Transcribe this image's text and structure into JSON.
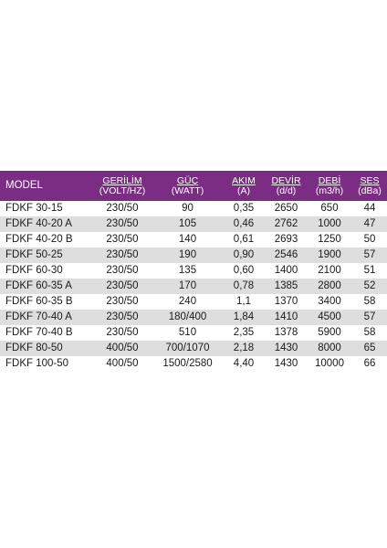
{
  "table": {
    "headers": [
      {
        "line1": "MODEL",
        "line2": ""
      },
      {
        "line1": "GERİLİM",
        "line2": "(VOLT/HZ)"
      },
      {
        "line1": "GÜÇ",
        "line2": "(WATT)"
      },
      {
        "line1": "AKIM",
        "line2": "(A)"
      },
      {
        "line1": "DEVİR",
        "line2": "(d/d)"
      },
      {
        "line1": "DEBİ",
        "line2": "(m3/h)"
      },
      {
        "line1": "SES",
        "line2": "(dBa)"
      }
    ],
    "rows": [
      [
        "FDKF 30-15",
        "230/50",
        "90",
        "0,35",
        "2650",
        "650",
        "44"
      ],
      [
        "FDKF 40-20 A",
        "230/50",
        "105",
        "0,46",
        "2762",
        "1000",
        "47"
      ],
      [
        "FDKF 40-20 B",
        "230/50",
        "140",
        "0,61",
        "2693",
        "1250",
        "50"
      ],
      [
        "FDKF 50-25",
        "230/50",
        "190",
        "0,90",
        "2546",
        "1900",
        "57"
      ],
      [
        "FDKF 60-30",
        "230/50",
        "135",
        "0,60",
        "1400",
        "2100",
        "51"
      ],
      [
        "FDKF 60-35 A",
        "230/50",
        "170",
        "0,78",
        "1385",
        "2800",
        "52"
      ],
      [
        "FDKF 60-35 B",
        "230/50",
        "240",
        "1,1",
        "1370",
        "3400",
        "58"
      ],
      [
        "FDKF 70-40 A",
        "230/50",
        "180/400",
        "1,84",
        "1410",
        "4500",
        "57"
      ],
      [
        "FDKF 70-40 B",
        "230/50",
        "510",
        "2,35",
        "1378",
        "5900",
        "58"
      ],
      [
        "FDKF 80-50",
        "400/50",
        "700/1070",
        "2,18",
        "1430",
        "8000",
        "65"
      ],
      [
        "FDKF 100-50",
        "400/50",
        "1500/2580",
        "4,40",
        "1430",
        "10000",
        "66"
      ]
    ]
  },
  "colors": {
    "header_bg": "#7b2d83",
    "header_text": "#ffffff",
    "row_alt_bg": "#dedede"
  }
}
